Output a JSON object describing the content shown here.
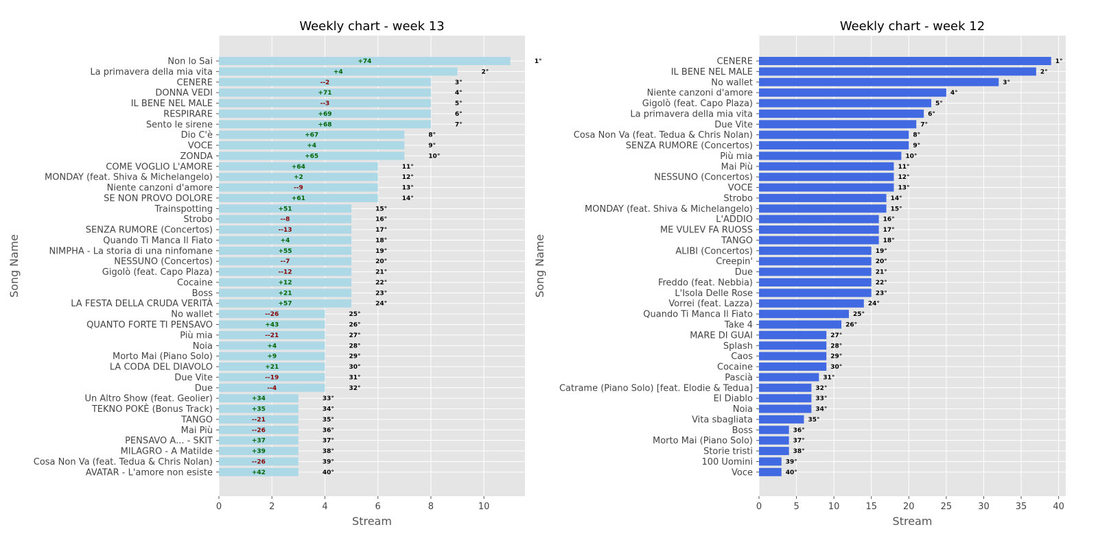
{
  "colors": {
    "panel_bg": "#e5e5e5",
    "grid": "#ffffff",
    "week13_bar": "#add8e6",
    "week12_bar": "#4169e1",
    "positive_change": "#006400",
    "negative_change": "#8b0000"
  },
  "chart_data": [
    {
      "type": "bar",
      "orientation": "horizontal",
      "title": "Weekly chart - week 13",
      "xlabel": "Stream",
      "ylabel": "Song Name",
      "xlim": [
        0,
        11.55
      ],
      "xticks": [
        0,
        2,
        4,
        6,
        8,
        10
      ],
      "grid": true,
      "bar_color": "#add8e6",
      "categories": [
        "Non lo Sai",
        "La primavera della mia vita",
        "CENERE",
        "DONNA VEDI",
        "IL BENE NEL MALE",
        "RESPIRARE",
        "Sento le sirene",
        "Dio C'è",
        "VOCE",
        "ZONDA",
        "COME VOGLIO L'AMORE",
        "MONDAY (feat. Shiva & Michelangelo)",
        "Niente canzoni d'amore",
        "SE NON PROVO DOLORE",
        "Trainspotting",
        "Strobo",
        "SENZA RUMORE (Concertos)",
        "Quando Ti Manca Il Fiato",
        "NIMPHA - La storia di una ninfomane",
        "NESSUNO (Concertos)",
        "Gigolò (feat. Capo Plaza)",
        "Cocaine",
        "Boss",
        "LA FESTA DELLA CRUDA VERITÀ",
        "No wallet",
        "QUANTO FORTE TI PENSAVO",
        "Più mia",
        "Noia",
        "Morto Mai (Piano Solo)",
        "LA CODA DEL DIAVOLO",
        "Due Vite",
        "Due",
        "Un Altro Show (feat. Geolier)",
        "TEKNO POKÈ (Bonus Track)",
        "TANGO",
        "Mai Più",
        "PENSAVO A... - SKIT",
        "MILAGRO - A Matilde",
        "Cosa Non Va (feat. Tedua & Chris Nolan)",
        "AVATAR - L'amore non esiste"
      ],
      "values": [
        11,
        9,
        8,
        8,
        8,
        8,
        8,
        7,
        7,
        7,
        6,
        6,
        6,
        6,
        5,
        5,
        5,
        5,
        5,
        5,
        5,
        5,
        5,
        5,
        4,
        4,
        4,
        4,
        4,
        4,
        4,
        4,
        3,
        3,
        3,
        3,
        3,
        3,
        3,
        3
      ],
      "rank_labels": [
        "1°",
        "2°",
        "3°",
        "4°",
        "5°",
        "6°",
        "7°",
        "8°",
        "9°",
        "10°",
        "11°",
        "12°",
        "13°",
        "14°",
        "15°",
        "16°",
        "17°",
        "18°",
        "19°",
        "20°",
        "21°",
        "22°",
        "23°",
        "24°",
        "25°",
        "26°",
        "27°",
        "28°",
        "29°",
        "30°",
        "31°",
        "32°",
        "33°",
        "34°",
        "35°",
        "36°",
        "37°",
        "38°",
        "39°",
        "40°"
      ],
      "change_labels": [
        "+74",
        "+4",
        "--2",
        "+71",
        "--3",
        "+69",
        "+68",
        "+67",
        "+4",
        "+65",
        "+64",
        "+2",
        "--9",
        "+61",
        "+51",
        "--8",
        "--13",
        "+4",
        "+55",
        "--7",
        "--12",
        "+12",
        "+21",
        "+57",
        "--26",
        "+43",
        "--21",
        "+4",
        "+9",
        "+21",
        "--19",
        "--4",
        "+34",
        "+35",
        "--21",
        "--26",
        "+37",
        "+39",
        "--26",
        "+42"
      ]
    },
    {
      "type": "bar",
      "orientation": "horizontal",
      "title": "Weekly chart - week 12",
      "xlabel": "Stream",
      "ylabel": "Song Name",
      "xlim": [
        0,
        40.95
      ],
      "xticks": [
        0,
        5,
        10,
        15,
        20,
        25,
        30,
        35,
        40
      ],
      "grid": true,
      "bar_color": "#4169e1",
      "categories": [
        "CENERE",
        "IL BENE NEL MALE",
        "No wallet",
        "Niente canzoni d'amore",
        "Gigolò (feat. Capo Plaza)",
        "La primavera della mia vita",
        "Due Vite",
        "Cosa Non Va (feat. Tedua & Chris Nolan)",
        "SENZA RUMORE (Concertos)",
        "Più mia",
        "Mai Più",
        "NESSUNO (Concertos)",
        "VOCE",
        "Strobo",
        "MONDAY (feat. Shiva & Michelangelo)",
        "L'ADDIO",
        "ME VULEV FA RUOSS",
        "TANGO",
        "ALIBI (Concertos)",
        "Creepin'",
        "Due",
        "Freddo (feat. Nebbia)",
        "L'Isola Delle Rose",
        "Vorrei (feat. Lazza)",
        "Quando Ti Manca Il Fiato",
        "Take 4",
        "MARE DI GUAI",
        "Splash",
        "Caos",
        "Cocaine",
        "Pascià",
        "Catrame (Piano Solo) [feat. Elodie & Tedua]",
        "El Diablo",
        "Noia",
        "Vita sbagliata",
        "Boss",
        "Morto Mai (Piano Solo)",
        "Storie tristi",
        "100 Uomini",
        "Voce"
      ],
      "values": [
        39,
        37,
        32,
        25,
        23,
        22,
        21,
        20,
        20,
        19,
        18,
        18,
        18,
        17,
        17,
        16,
        16,
        16,
        15,
        15,
        15,
        15,
        15,
        14,
        12,
        11,
        9,
        9,
        9,
        9,
        8,
        7,
        7,
        7,
        6,
        4,
        4,
        4,
        3,
        3
      ],
      "rank_labels": [
        "1°",
        "2°",
        "3°",
        "4°",
        "5°",
        "6°",
        "7°",
        "8°",
        "9°",
        "10°",
        "11°",
        "12°",
        "13°",
        "14°",
        "15°",
        "16°",
        "17°",
        "18°",
        "19°",
        "20°",
        "21°",
        "22°",
        "23°",
        "24°",
        "25°",
        "26°",
        "27°",
        "28°",
        "29°",
        "30°",
        "31°",
        "32°",
        "33°",
        "34°",
        "35°",
        "36°",
        "37°",
        "38°",
        "39°",
        "40°"
      ]
    }
  ]
}
